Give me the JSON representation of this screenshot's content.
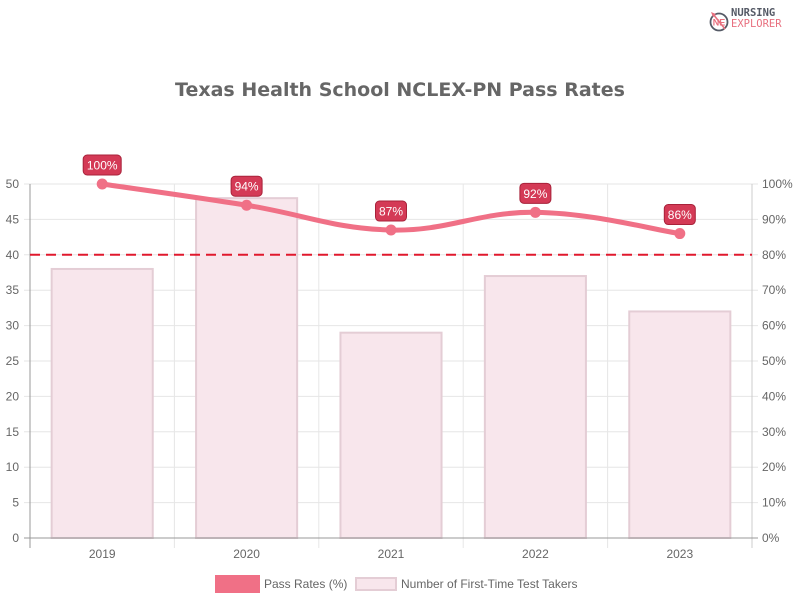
{
  "logo": {
    "line1": "NURSING",
    "line2": "EXPLORER",
    "mark": "NE"
  },
  "colors": {
    "line": "#f07086",
    "bar_fill": "#f8e6ec",
    "bar_border": "#e4cdd5",
    "threshold": "#e0182d",
    "label_bg": "#d43a56",
    "label_border": "#a8223a",
    "grid": "#e6e6e6",
    "axis": "#999999"
  },
  "legend": {
    "items": [
      {
        "label": "Pass Rates (%)"
      },
      {
        "label": "Number of First-Time Test Takers"
      }
    ]
  },
  "chart_data": {
    "type": "bar+line",
    "title": "Texas Health School NCLEX-PN Pass Rates",
    "categories": [
      "2019",
      "2020",
      "2021",
      "2022",
      "2023"
    ],
    "series": [
      {
        "name": "Pass Rates (%)",
        "type": "line",
        "axis": "right",
        "values": [
          100,
          94,
          87,
          92,
          86
        ],
        "labels": [
          "100%",
          "94%",
          "87%",
          "92%",
          "86%"
        ]
      },
      {
        "name": "Number of First-Time Test Takers",
        "type": "bar",
        "axis": "left",
        "values": [
          38,
          48,
          29,
          37,
          32
        ]
      }
    ],
    "threshold": {
      "value_left": 40,
      "value_right_pct": 80,
      "style": "dashed"
    },
    "left_axis": {
      "min": 0,
      "max": 50,
      "step": 5,
      "ticks": [
        "0",
        "5",
        "10",
        "15",
        "20",
        "25",
        "30",
        "35",
        "40",
        "45",
        "50"
      ]
    },
    "right_axis": {
      "min": 0,
      "max": 100,
      "step": 10,
      "ticks": [
        "0%",
        "10%",
        "20%",
        "30%",
        "40%",
        "50%",
        "60%",
        "70%",
        "80%",
        "90%",
        "100%"
      ]
    },
    "xlabel": "",
    "ylabel": "",
    "grid": true,
    "legend_position": "bottom"
  }
}
